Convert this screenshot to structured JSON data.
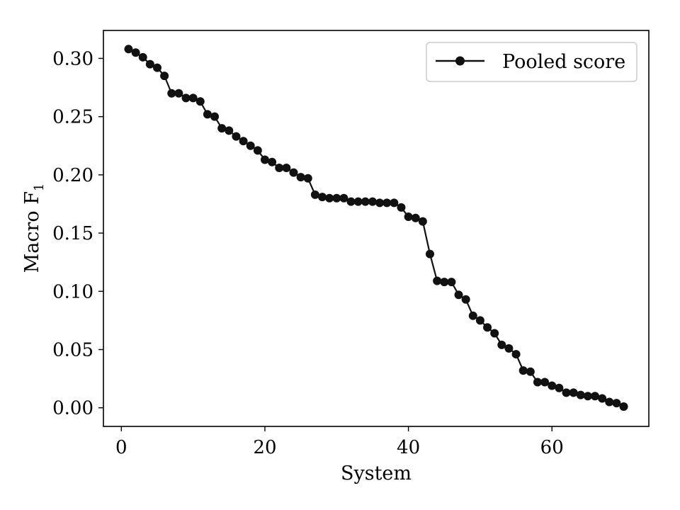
{
  "chart_data": {
    "type": "line",
    "title": "",
    "xlabel": "System",
    "ylabel": "Macro F",
    "ylabel_subscript": "1",
    "xlim": [
      -2.5,
      73.5
    ],
    "ylim": [
      -0.016,
      0.324
    ],
    "xticks": [
      0,
      20,
      40,
      60
    ],
    "xtick_labels": [
      "0",
      "20",
      "40",
      "60"
    ],
    "yticks": [
      0.0,
      0.05,
      0.1,
      0.15,
      0.2,
      0.25,
      0.3
    ],
    "ytick_labels": [
      "0.00",
      "0.05",
      "0.10",
      "0.15",
      "0.20",
      "0.25",
      "0.30"
    ],
    "grid": false,
    "legend_position": "top-right",
    "series": [
      {
        "name": "Pooled score",
        "color": "#111111",
        "marker": "circle",
        "x": [
          1,
          2,
          3,
          4,
          5,
          6,
          7,
          8,
          9,
          10,
          11,
          12,
          13,
          14,
          15,
          16,
          17,
          18,
          19,
          20,
          21,
          22,
          23,
          24,
          25,
          26,
          27,
          28,
          29,
          30,
          31,
          32,
          33,
          34,
          35,
          36,
          37,
          38,
          39,
          40,
          41,
          42,
          43,
          44,
          45,
          46,
          47,
          48,
          49,
          50,
          51,
          52,
          53,
          54,
          55,
          56,
          57,
          58,
          59,
          60,
          61,
          62,
          63,
          64,
          65,
          66,
          67,
          68,
          69,
          70
        ],
        "y": [
          0.308,
          0.305,
          0.301,
          0.295,
          0.292,
          0.285,
          0.27,
          0.27,
          0.266,
          0.266,
          0.263,
          0.252,
          0.25,
          0.24,
          0.238,
          0.233,
          0.229,
          0.225,
          0.221,
          0.213,
          0.211,
          0.206,
          0.206,
          0.202,
          0.198,
          0.197,
          0.183,
          0.181,
          0.18,
          0.18,
          0.18,
          0.177,
          0.177,
          0.177,
          0.177,
          0.176,
          0.176,
          0.176,
          0.172,
          0.164,
          0.163,
          0.16,
          0.132,
          0.109,
          0.108,
          0.108,
          0.097,
          0.093,
          0.079,
          0.075,
          0.069,
          0.064,
          0.054,
          0.051,
          0.046,
          0.032,
          0.031,
          0.022,
          0.022,
          0.019,
          0.017,
          0.013,
          0.013,
          0.011,
          0.01,
          0.01,
          0.008,
          0.005,
          0.004,
          0.001
        ]
      }
    ]
  }
}
